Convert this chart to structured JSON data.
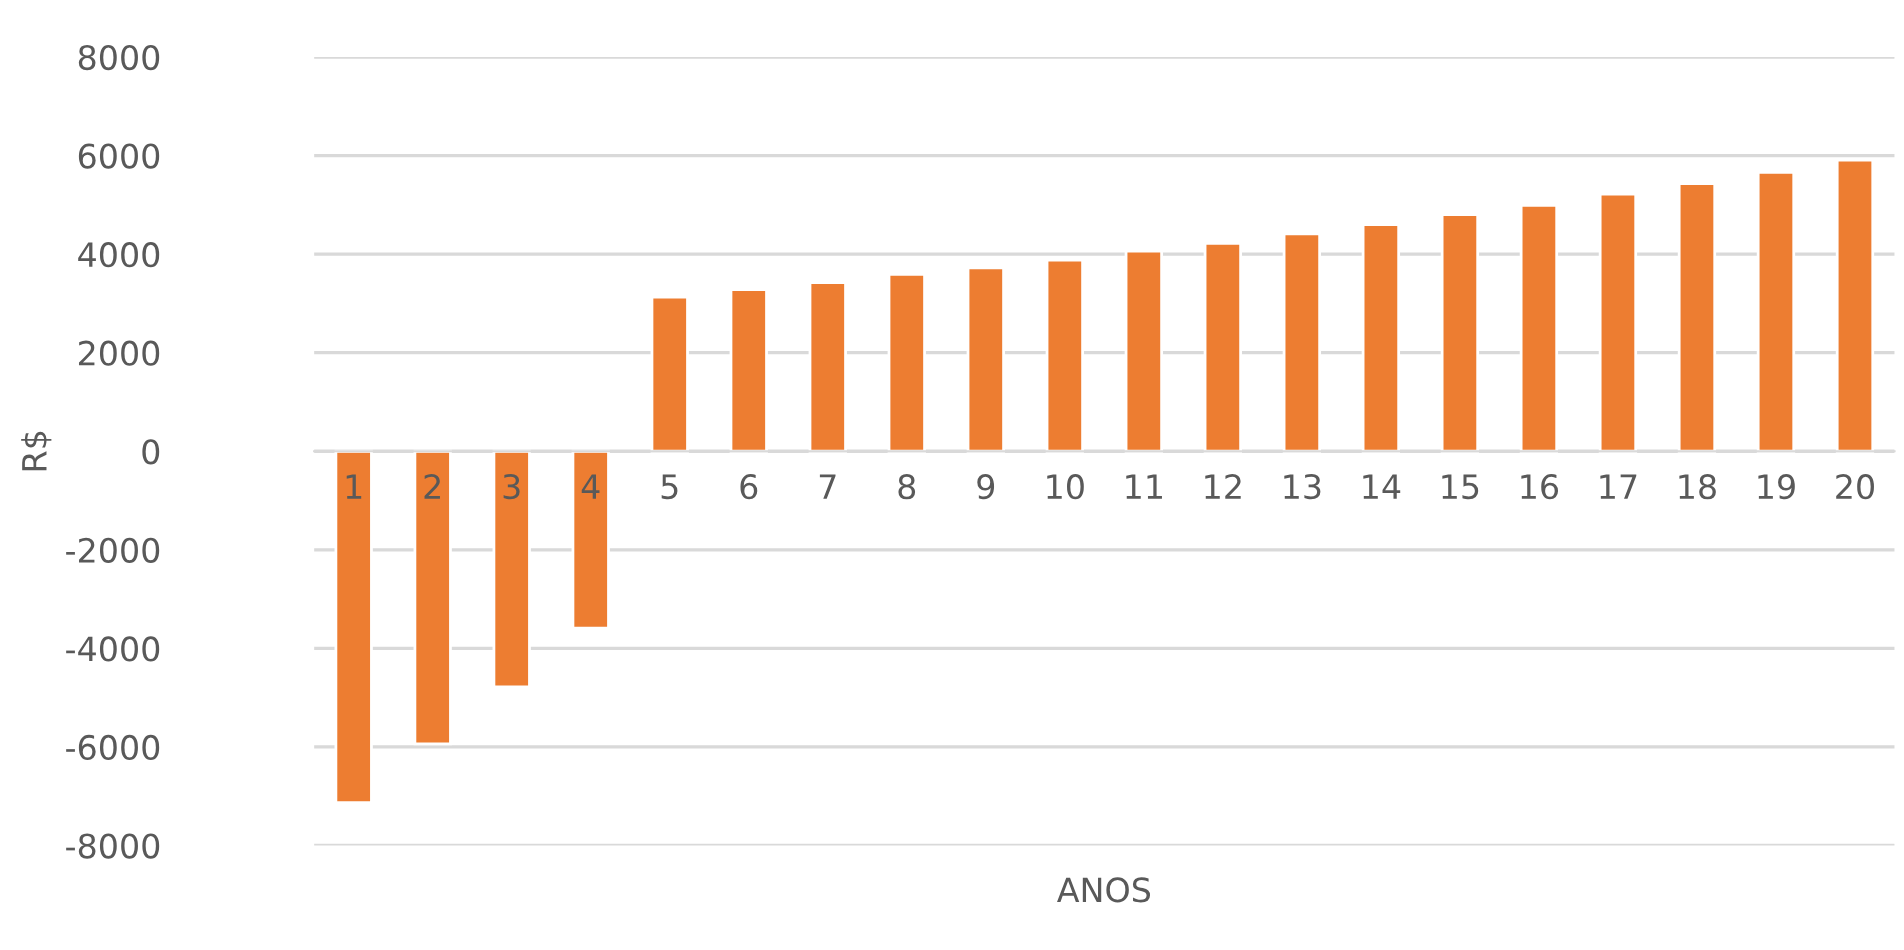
{
  "chart_data": {
    "type": "bar",
    "xlabel": "ANOS",
    "ylabel": "R$",
    "categories": [
      "1",
      "2",
      "3",
      "4",
      "5",
      "6",
      "7",
      "8",
      "9",
      "10",
      "11",
      "12",
      "13",
      "14",
      "15",
      "16",
      "17",
      "18",
      "19",
      "20"
    ],
    "values": [
      -7130,
      -5940,
      -4780,
      -3590,
      3130,
      3280,
      3420,
      3590,
      3720,
      3880,
      4060,
      4220,
      4410,
      4600,
      4800,
      4990,
      5220,
      5430,
      5660,
      5910
    ],
    "color": "#ed7d31",
    "ylim": [
      -8000,
      8000
    ],
    "yticks": [
      -8000,
      -6000,
      -4000,
      -2000,
      0,
      2000,
      4000,
      6000,
      8000
    ],
    "grid": "y",
    "legend": false
  }
}
